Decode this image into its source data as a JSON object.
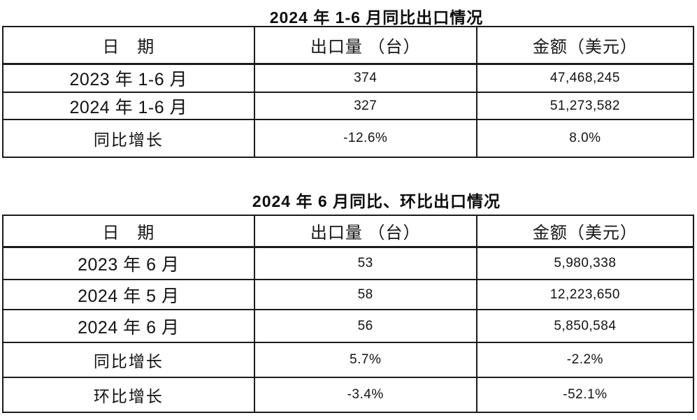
{
  "meta": {
    "page_background": "#ffffff",
    "border_color": "#1b1b1b",
    "text_color": "#121212"
  },
  "chart_data": [
    {
      "type": "table",
      "title": "2024 年 1-6 月同比出口情况",
      "columns": [
        "日　期",
        "出口量 （台）",
        "金额（美元）"
      ],
      "rows": [
        [
          "2023 年 1-6 月",
          "374",
          "47,468,245"
        ],
        [
          "2024 年 1-6 月",
          "327",
          "51,273,582"
        ],
        [
          "同比增长",
          "-12.6%",
          "8.0%"
        ]
      ]
    },
    {
      "type": "table",
      "title": "2024 年 6 月同比、环比出口情况",
      "columns": [
        "日　期",
        "出口量 （台）",
        "金额（美元）"
      ],
      "rows": [
        [
          "2023 年 6 月",
          "53",
          "5,980,338"
        ],
        [
          "2024 年 5 月",
          "58",
          "12,223,650"
        ],
        [
          "2024 年 6 月",
          "56",
          "5,850,584"
        ],
        [
          "同比增长",
          "5.7%",
          "-2.2%"
        ],
        [
          "环比增长",
          "-3.4%",
          "-52.1%"
        ]
      ]
    }
  ]
}
